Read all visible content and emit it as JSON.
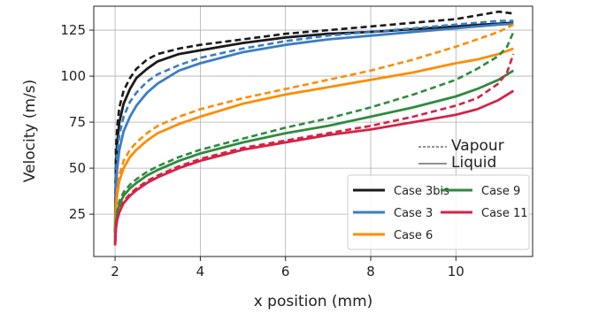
{
  "chart_data": {
    "type": "line",
    "xlabel": "x position (mm)",
    "ylabel": "Velocity (m/s)",
    "xlim": [
      1.5,
      11.8
    ],
    "ylim": [
      2,
      138
    ],
    "xticks": [
      2,
      4,
      6,
      8,
      10
    ],
    "yticks": [
      25,
      50,
      75,
      100,
      125
    ],
    "grid": true,
    "line_style_legend": {
      "placement": "center-right",
      "items": [
        {
          "label": "Vapour",
          "dash": "dashed"
        },
        {
          "label": "Liquid",
          "dash": "solid"
        }
      ]
    },
    "legend": {
      "placement": "lower-right",
      "columns": 2
    },
    "series": [
      {
        "name": "Case 3bis",
        "color": "#1a1a1a",
        "legend_order": 0,
        "liquid": {
          "x": [
            2.0,
            2.02,
            2.05,
            2.1,
            2.2,
            2.35,
            2.5,
            2.75,
            3.0,
            3.5,
            4.0,
            5.0,
            6.0,
            7.0,
            8.0,
            9.0,
            10.0,
            10.5,
            11.0,
            11.35
          ],
          "y": [
            15,
            50,
            64,
            75,
            85,
            93,
            99,
            104,
            108,
            112,
            114,
            118,
            121,
            123,
            124,
            125.5,
            127,
            127.8,
            128.5,
            129
          ]
        },
        "vapour": {
          "x": [
            2.0,
            2.02,
            2.05,
            2.1,
            2.2,
            2.35,
            2.5,
            2.75,
            3.0,
            3.5,
            4.0,
            5.0,
            6.0,
            7.0,
            8.0,
            9.0,
            10.0,
            10.5,
            11.0,
            11.35
          ],
          "y": [
            15,
            60,
            73,
            83,
            92,
            99,
            104,
            109,
            112,
            115,
            117,
            120,
            123,
            125,
            127,
            129,
            131,
            133,
            135,
            134
          ]
        }
      },
      {
        "name": "Case 3",
        "color": "#3b7dc4",
        "legend_order": 1,
        "liquid": {
          "x": [
            2.0,
            2.02,
            2.05,
            2.1,
            2.2,
            2.35,
            2.5,
            2.75,
            3.0,
            3.5,
            4.0,
            5.0,
            6.0,
            7.0,
            8.0,
            9.0,
            10.0,
            10.5,
            11.0,
            11.35
          ],
          "y": [
            12,
            38,
            50,
            60,
            70,
            78,
            84,
            91,
            96,
            103,
            107,
            113,
            117,
            120,
            122,
            124,
            126,
            127,
            128,
            128.5
          ]
        },
        "vapour": {
          "x": [
            2.0,
            2.02,
            2.05,
            2.1,
            2.2,
            2.35,
            2.5,
            2.75,
            3.0,
            3.5,
            4.0,
            5.0,
            6.0,
            7.0,
            8.0,
            9.0,
            10.0,
            10.5,
            11.0,
            11.35
          ],
          "y": [
            12,
            45,
            58,
            68,
            78,
            86,
            91,
            97,
            101,
            106,
            110,
            115,
            119,
            122,
            124,
            126,
            128,
            129,
            130,
            130
          ]
        }
      },
      {
        "name": "Case 6",
        "color": "#ff8c00",
        "legend_order": 2,
        "liquid": {
          "x": [
            2.0,
            2.02,
            2.05,
            2.1,
            2.2,
            2.35,
            2.5,
            2.75,
            3.0,
            3.5,
            4.0,
            5.0,
            6.0,
            7.0,
            8.0,
            9.0,
            10.0,
            10.5,
            11.0,
            11.35
          ],
          "y": [
            10,
            28,
            36,
            43,
            50,
            56,
            60,
            65,
            69,
            74,
            78,
            85,
            90,
            94,
            98,
            102,
            107,
            109,
            112,
            115
          ]
        },
        "vapour": {
          "x": [
            2.0,
            2.02,
            2.05,
            2.1,
            2.2,
            2.35,
            2.5,
            2.75,
            3.0,
            3.5,
            4.0,
            5.0,
            6.0,
            7.0,
            8.0,
            9.0,
            10.0,
            10.5,
            11.0,
            11.35
          ],
          "y": [
            10,
            30,
            39,
            46,
            54,
            60,
            64,
            69,
            73,
            78,
            82,
            88,
            93,
            98,
            103,
            109,
            116,
            120,
            124,
            128
          ]
        }
      },
      {
        "name": "Case 9",
        "color": "#2e8b3e",
        "legend_order": 3,
        "liquid": {
          "x": [
            2.0,
            2.02,
            2.05,
            2.1,
            2.2,
            2.35,
            2.5,
            2.75,
            3.0,
            3.5,
            4.0,
            5.0,
            6.0,
            7.0,
            8.0,
            9.0,
            10.0,
            10.5,
            11.0,
            11.35
          ],
          "y": [
            9,
            20,
            26,
            30,
            35,
            39,
            42,
            46,
            49,
            54,
            58,
            64,
            69,
            73,
            78,
            83,
            89,
            93,
            98,
            103
          ]
        },
        "vapour": {
          "x": [
            2.0,
            2.02,
            2.05,
            2.1,
            2.2,
            2.35,
            2.5,
            2.75,
            3.0,
            3.5,
            4.0,
            5.0,
            6.0,
            7.0,
            8.0,
            9.0,
            10.0,
            10.5,
            11.0,
            11.2,
            11.35
          ],
          "y": [
            9,
            21,
            27,
            32,
            37,
            41,
            44,
            48,
            51,
            56,
            60,
            66,
            72,
            77,
            83,
            90,
            98,
            104,
            111,
            116,
            124
          ]
        }
      },
      {
        "name": "Case 11",
        "color": "#d62246",
        "legend_order": 4,
        "liquid": {
          "x": [
            2.0,
            2.02,
            2.05,
            2.1,
            2.2,
            2.35,
            2.5,
            2.75,
            3.0,
            3.5,
            4.0,
            5.0,
            6.0,
            7.0,
            8.0,
            9.0,
            10.0,
            10.5,
            11.0,
            11.35
          ],
          "y": [
            8,
            17,
            22,
            26,
            31,
            35,
            38,
            42,
            45,
            50,
            54,
            60,
            64,
            68,
            71,
            75,
            79,
            82,
            87,
            92
          ]
        },
        "vapour": {
          "x": [
            2.0,
            2.02,
            2.05,
            2.1,
            2.2,
            2.35,
            2.5,
            2.75,
            3.0,
            3.5,
            4.0,
            5.0,
            6.0,
            7.0,
            8.0,
            9.0,
            10.0,
            10.5,
            11.0,
            11.2,
            11.35
          ],
          "y": [
            8,
            18,
            23,
            27,
            32,
            36,
            39,
            43,
            46,
            51,
            55,
            61,
            65,
            69,
            73,
            78,
            84,
            88,
            96,
            102,
            112
          ]
        }
      }
    ]
  }
}
